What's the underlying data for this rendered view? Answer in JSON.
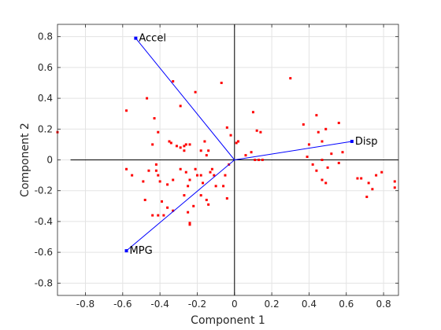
{
  "chart_data": {
    "type": "scatter",
    "title": "",
    "xlabel": "Component 1",
    "ylabel": "Component 2",
    "xlim": [
      -0.95,
      0.88
    ],
    "ylim": [
      -0.88,
      0.88
    ],
    "xticks": [
      -0.8,
      -0.6,
      -0.4,
      -0.2,
      0,
      0.2,
      0.4,
      0.6,
      0.8
    ],
    "xtick_labels": [
      "-0.8",
      "-0.6",
      "-0.4",
      "-0.2",
      "0",
      "0.2",
      "0.4",
      "0.6",
      "0.8"
    ],
    "yticks": [
      -0.8,
      -0.6,
      -0.4,
      -0.2,
      0,
      0.2,
      0.4,
      0.6,
      0.8
    ],
    "ytick_labels": [
      "-0.8",
      "-0.6",
      "-0.4",
      "-0.2",
      "0",
      "0.2",
      "0.4",
      "0.6",
      "0.8"
    ],
    "grid": true,
    "colors": {
      "points": "#ff0000",
      "vectors": "#0000ff",
      "axes_lines": "#000000"
    },
    "vectors": [
      {
        "label": "Accel",
        "x": -0.53,
        "y": 0.79
      },
      {
        "label": "Disp",
        "x": 0.63,
        "y": 0.12
      },
      {
        "label": "MPG",
        "x": -0.58,
        "y": -0.59
      }
    ],
    "points": [
      [
        -0.95,
        0.18
      ],
      [
        -0.58,
        0.32
      ],
      [
        -0.47,
        0.4
      ],
      [
        -0.33,
        0.51
      ],
      [
        -0.43,
        0.27
      ],
      [
        -0.29,
        0.35
      ],
      [
        -0.21,
        0.44
      ],
      [
        -0.07,
        0.5
      ],
      [
        -0.41,
        0.18
      ],
      [
        -0.44,
        0.1
      ],
      [
        -0.35,
        0.12
      ],
      [
        -0.34,
        0.11
      ],
      [
        -0.31,
        0.09
      ],
      [
        -0.27,
        0.09
      ],
      [
        -0.26,
        0.1
      ],
      [
        -0.24,
        0.1
      ],
      [
        -0.18,
        0.06
      ],
      [
        -0.16,
        0.12
      ],
      [
        -0.14,
        0.06
      ],
      [
        -0.15,
        0.03
      ],
      [
        -0.27,
        0.06
      ],
      [
        -0.29,
        0.08
      ],
      [
        -0.04,
        0.21
      ],
      [
        -0.02,
        0.16
      ],
      [
        0.01,
        0.11
      ],
      [
        0.02,
        0.12
      ],
      [
        0.06,
        0.03
      ],
      [
        0.09,
        0.05
      ],
      [
        0.1,
        0.31
      ],
      [
        0.12,
        0.19
      ],
      [
        0.14,
        0.18
      ],
      [
        0.3,
        0.53
      ],
      [
        0.37,
        0.23
      ],
      [
        0.44,
        0.29
      ],
      [
        0.45,
        0.18
      ],
      [
        0.47,
        0.12
      ],
      [
        0.49,
        0.2
      ],
      [
        0.56,
        0.24
      ],
      [
        0.4,
        0.1
      ],
      [
        0.39,
        0.02
      ],
      [
        0.42,
        -0.03
      ],
      [
        0.44,
        -0.07
      ],
      [
        0.47,
        0.0
      ],
      [
        0.5,
        -0.05
      ],
      [
        0.52,
        0.04
      ],
      [
        0.56,
        -0.02
      ],
      [
        0.58,
        0.05
      ],
      [
        0.47,
        -0.13
      ],
      [
        0.49,
        -0.15
      ],
      [
        0.13,
        0.0
      ],
      [
        0.15,
        0.0
      ],
      [
        0.11,
        0.0
      ],
      [
        0.68,
        -0.12
      ],
      [
        0.72,
        -0.15
      ],
      [
        0.74,
        -0.19
      ],
      [
        0.79,
        -0.08
      ],
      [
        0.76,
        -0.1
      ],
      [
        0.86,
        -0.14
      ],
      [
        0.86,
        -0.18
      ],
      [
        0.71,
        -0.24
      ],
      [
        0.66,
        -0.12
      ],
      [
        -0.42,
        -0.03
      ],
      [
        -0.42,
        -0.07
      ],
      [
        -0.41,
        -0.1
      ],
      [
        -0.46,
        -0.07
      ],
      [
        -0.55,
        -0.1
      ],
      [
        -0.58,
        -0.06
      ],
      [
        -0.49,
        -0.14
      ],
      [
        -0.4,
        -0.14
      ],
      [
        -0.36,
        -0.16
      ],
      [
        -0.33,
        -0.13
      ],
      [
        -0.29,
        -0.06
      ],
      [
        -0.26,
        -0.08
      ],
      [
        -0.25,
        -0.17
      ],
      [
        -0.24,
        -0.13
      ],
      [
        -0.21,
        -0.06
      ],
      [
        -0.2,
        -0.1
      ],
      [
        -0.18,
        -0.1
      ],
      [
        -0.17,
        -0.15
      ],
      [
        -0.12,
        -0.06
      ],
      [
        -0.11,
        -0.1
      ],
      [
        -0.13,
        -0.08
      ],
      [
        -0.1,
        -0.17
      ],
      [
        -0.06,
        -0.17
      ],
      [
        -0.03,
        -0.03
      ],
      [
        -0.05,
        -0.1
      ],
      [
        -0.18,
        -0.23
      ],
      [
        -0.27,
        -0.23
      ],
      [
        -0.15,
        -0.26
      ],
      [
        -0.14,
        -0.29
      ],
      [
        -0.04,
        -0.25
      ],
      [
        -0.39,
        -0.27
      ],
      [
        -0.36,
        -0.31
      ],
      [
        -0.33,
        -0.33
      ],
      [
        -0.38,
        -0.36
      ],
      [
        -0.41,
        -0.36
      ],
      [
        -0.44,
        -0.36
      ],
      [
        -0.48,
        -0.26
      ],
      [
        -0.25,
        -0.34
      ],
      [
        -0.22,
        -0.3
      ],
      [
        -0.24,
        -0.41
      ],
      [
        -0.24,
        -0.42
      ]
    ]
  }
}
